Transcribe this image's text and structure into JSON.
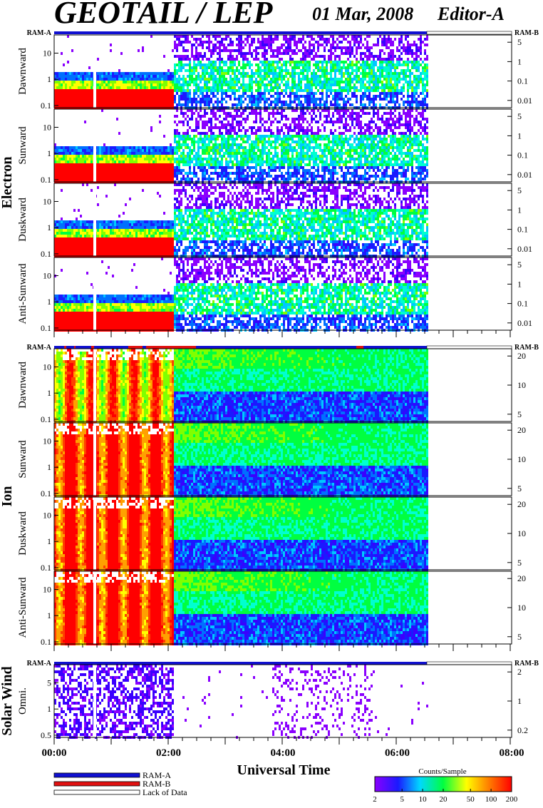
{
  "header": {
    "title": "GEOTAIL / LEP",
    "date": "01 Mar, 2008",
    "editor": "Editor-A"
  },
  "ram_labels": {
    "left": "RAM-A",
    "right": "RAM-B"
  },
  "groups": [
    {
      "name": "Electron",
      "panels": [
        "Dawnward",
        "Sunward",
        "Duskward",
        "Anti-Sunward"
      ],
      "left_ticks": [
        "10",
        "1",
        "0.1"
      ],
      "right_ticks": [
        "5",
        "1",
        "0.1",
        "0.01"
      ]
    },
    {
      "name": "Ion",
      "panels": [
        "Dawnward",
        "Sunward",
        "Duskward",
        "Anti-Sunward"
      ],
      "left_ticks": [
        "10",
        "1",
        "0.1"
      ],
      "right_ticks": [
        "20",
        "10",
        "5"
      ]
    },
    {
      "name": "Solar Wind",
      "panels": [
        "Omni."
      ],
      "left_ticks": [
        "5",
        "1",
        "0.5"
      ],
      "right_ticks": [
        "2",
        "1",
        "0.2"
      ]
    }
  ],
  "x_axis": {
    "title": "Universal Time",
    "ticks": [
      "00:00",
      "02:00",
      "04:00",
      "06:00",
      "08:00"
    ]
  },
  "legend": {
    "items": [
      {
        "label": "RAM-A",
        "color": "#1010d0"
      },
      {
        "label": "RAM-B",
        "color": "#e01010"
      },
      {
        "label": "Lack of Data",
        "color": "#ffffff"
      }
    ]
  },
  "colorbar": {
    "title": "Counts/Sample",
    "ticks": [
      "2",
      "5",
      "10",
      "20",
      "50",
      "100",
      "200"
    ]
  },
  "chart_data": {
    "type": "heatmap",
    "title": "GEOTAIL / LEP",
    "xlabel": "Universal Time",
    "x_range": [
      "00:00",
      "08:00"
    ],
    "data_end": "06:30",
    "colorbar_range": [
      2,
      200
    ],
    "colorbar_scale": "log",
    "groups": [
      "Electron",
      "Ion",
      "Solar Wind"
    ]
  }
}
